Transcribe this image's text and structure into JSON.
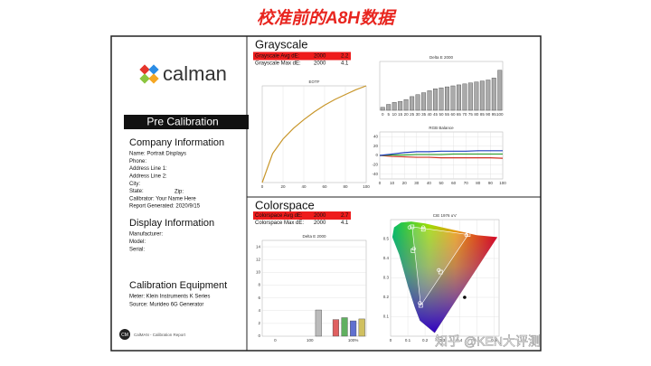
{
  "title": "校准前的A8H数据",
  "logo": "calman",
  "banner": "Pre Calibration",
  "company": {
    "heading": "Company Information",
    "lines": [
      "Name: Portrait Displays",
      "Phone:",
      "Address Line 1:",
      "Address Line 2:",
      "City:",
      "State:",
      "Calibrator: Your Name Here",
      "Report Generated: 2020/9/15"
    ],
    "zip": "Zip:"
  },
  "display": {
    "heading": "Display Information",
    "lines": [
      "Manufacturer:",
      "Model:",
      "Serial:"
    ]
  },
  "equipment": {
    "heading": "Calibration Equipment",
    "lines": [
      "Meter: Klein Instruments K Series",
      "Source: Murideo 6G Generator"
    ]
  },
  "footer": {
    "badge": "CM",
    "text": "CalMAN - Calibration Report"
  },
  "grayscale": {
    "heading": "Grayscale",
    "rows": [
      [
        "Grayscale Avg dE:",
        "2000",
        "2.2"
      ],
      [
        "Grayscale Max dE:",
        "2000",
        "4.1"
      ]
    ],
    "eotf": {
      "type": "line",
      "title": "EOTF",
      "x": [
        0,
        10,
        20,
        30,
        40,
        50,
        60,
        70,
        80,
        90,
        100
      ],
      "values": [
        0,
        0.3,
        0.45,
        0.56,
        0.65,
        0.73,
        0.8,
        0.86,
        0.91,
        0.96,
        1
      ],
      "color": "#c8962a",
      "xlim": [
        0,
        100
      ],
      "ylim": [
        0,
        1
      ],
      "xticks": [
        0,
        20,
        40,
        60,
        80,
        100
      ]
    },
    "delta_e": {
      "type": "bar",
      "title": "Delta E 2000",
      "categories": [
        "0",
        "5",
        "10",
        "15",
        "20",
        "25",
        "30",
        "35",
        "40",
        "45",
        "50",
        "55",
        "60",
        "65",
        "70",
        "75",
        "80",
        "85",
        "90",
        "95",
        "100"
      ],
      "values": [
        0.3,
        0.6,
        0.8,
        0.9,
        1.1,
        1.4,
        1.6,
        1.8,
        2,
        2.2,
        2.3,
        2.4,
        2.5,
        2.6,
        2.7,
        2.8,
        2.9,
        3,
        3.1,
        3.3,
        4.1
      ],
      "ylim": [
        0,
        5
      ]
    },
    "rgb_balance": {
      "type": "line",
      "title": "RGB Balance",
      "x": [
        0,
        10,
        20,
        30,
        40,
        50,
        60,
        70,
        80,
        90,
        100
      ],
      "series": [
        {
          "color": "#d03020",
          "values": [
            0,
            -2,
            -3,
            -4,
            -4,
            -5,
            -5,
            -5,
            -5,
            -5,
            -6
          ]
        },
        {
          "color": "#30a030",
          "values": [
            0,
            1,
            1,
            2,
            2,
            2,
            3,
            3,
            3,
            3,
            3
          ]
        },
        {
          "color": "#2040c0",
          "values": [
            0,
            3,
            6,
            8,
            8,
            9,
            9,
            9,
            10,
            10,
            10
          ]
        }
      ],
      "xlim": [
        0,
        100
      ],
      "ylim": [
        -50,
        50
      ],
      "xticks": [
        0,
        10,
        20,
        30,
        40,
        50,
        60,
        70,
        80,
        90,
        100
      ],
      "yticks": [
        40,
        20,
        0,
        -20,
        -40
      ]
    }
  },
  "colorspace": {
    "heading": "Colorspace",
    "rows": [
      [
        "Colorspace Avg dE:",
        "2000",
        "2.7"
      ],
      [
        "Colorspace Max dE:",
        "2000",
        "4.1"
      ]
    ],
    "delta_e": {
      "type": "bar",
      "title": "Delta E 2000",
      "categories": [
        null,
        "0",
        null,
        null,
        null,
        "100",
        null,
        null,
        null,
        null,
        "100%",
        null
      ],
      "values": [
        0,
        0,
        0,
        0,
        0,
        0,
        4.1,
        0,
        2.6,
        2.9,
        2.4,
        2.7
      ],
      "colors": [
        "#999",
        "#999",
        "#999",
        "#999",
        "#999",
        "#999",
        "#bbb",
        "#999",
        "#e06060",
        "#60b060",
        "#6070d0",
        "#d0c060"
      ],
      "ylim": [
        0,
        15
      ],
      "yticks": [
        0,
        2,
        4,
        6,
        8,
        10,
        12,
        14
      ]
    },
    "cie": {
      "type": "scatter",
      "title": "CIE 1976 u'v'",
      "xlim": [
        0,
        0.63
      ],
      "ylim": [
        0,
        0.6
      ],
      "xticks": [
        0,
        0.1,
        0.2,
        0.3,
        0.4,
        0.5,
        0.6
      ],
      "yticks": [
        0.1,
        0.2,
        0.3,
        0.4,
        0.5
      ],
      "targets": {
        "u": [
          0.451,
          0.125,
          0.175,
          0.13,
          0.29,
          0.19
        ],
        "v": [
          0.523,
          0.563,
          0.158,
          0.44,
          0.33,
          0.55
        ]
      },
      "measured": {
        "u": [
          0.44,
          0.11,
          0.17,
          0.135,
          0.28,
          0.19
        ],
        "v": [
          0.52,
          0.56,
          0.17,
          0.45,
          0.34,
          0.56
        ]
      },
      "marker": {
        "u": 0.43,
        "v": 0.2
      }
    }
  },
  "watermark": "知乎 @KEN大评测"
}
